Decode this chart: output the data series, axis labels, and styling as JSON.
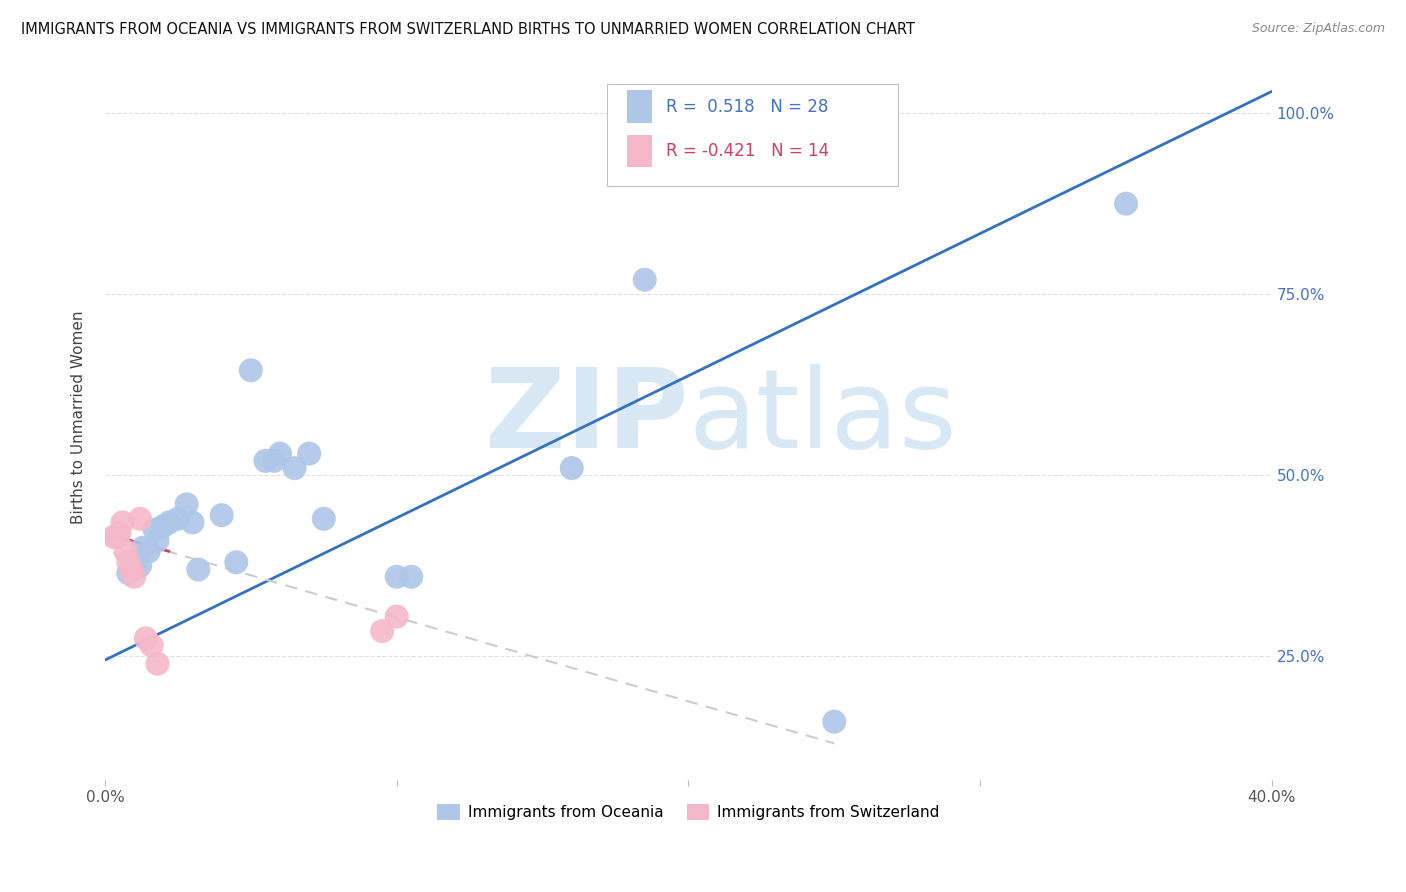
{
  "title": "IMMIGRANTS FROM OCEANIA VS IMMIGRANTS FROM SWITZERLAND BIRTHS TO UNMARRIED WOMEN CORRELATION CHART",
  "source": "Source: ZipAtlas.com",
  "ylabel": "Births to Unmarried Women",
  "legend_blue_label": "Immigrants from Oceania",
  "legend_pink_label": "Immigrants from Switzerland",
  "r_blue": 0.518,
  "n_blue": 28,
  "r_pink": -0.421,
  "n_pink": 14,
  "xlim": [
    0.0,
    0.4
  ],
  "ylim": [
    0.08,
    1.08
  ],
  "xticks": [
    0.0,
    0.1,
    0.2,
    0.3,
    0.4
  ],
  "xtick_labels": [
    "0.0%",
    "",
    "",
    "",
    "40.0%"
  ],
  "yticks": [
    0.25,
    0.5,
    0.75,
    1.0
  ],
  "ytick_labels": [
    "25.0%",
    "50.0%",
    "75.0%",
    "100.0%"
  ],
  "blue_color": "#aec6e8",
  "pink_color": "#f5b8c8",
  "blue_line_color": "#3572be",
  "pink_line_color": "#d04060",
  "pink_dash_color": "#cccccc",
  "blue_points_x": [
    0.008,
    0.01,
    0.012,
    0.013,
    0.015,
    0.017,
    0.018,
    0.02,
    0.022,
    0.025,
    0.028,
    0.03,
    0.032,
    0.04,
    0.045,
    0.05,
    0.055,
    0.058,
    0.06,
    0.065,
    0.07,
    0.075,
    0.1,
    0.105,
    0.16,
    0.185,
    0.25,
    0.35
  ],
  "blue_points_y": [
    0.365,
    0.375,
    0.375,
    0.4,
    0.395,
    0.425,
    0.41,
    0.43,
    0.435,
    0.44,
    0.46,
    0.435,
    0.37,
    0.445,
    0.38,
    0.645,
    0.52,
    0.52,
    0.53,
    0.51,
    0.53,
    0.44,
    0.36,
    0.36,
    0.51,
    0.77,
    0.16,
    0.875
  ],
  "pink_points_x": [
    0.003,
    0.004,
    0.005,
    0.006,
    0.007,
    0.008,
    0.009,
    0.01,
    0.012,
    0.014,
    0.016,
    0.018,
    0.095,
    0.1
  ],
  "pink_points_y": [
    0.415,
    0.415,
    0.42,
    0.435,
    0.395,
    0.38,
    0.37,
    0.36,
    0.44,
    0.275,
    0.265,
    0.24,
    0.285,
    0.305
  ],
  "blue_line_x0": 0.0,
  "blue_line_y0": 0.245,
  "blue_line_x1": 0.4,
  "blue_line_y1": 1.03,
  "pink_line_x0": 0.0,
  "pink_line_y0": 0.42,
  "pink_line_x1": 0.25,
  "pink_line_y1": 0.13,
  "watermark_zip": "ZIP",
  "watermark_atlas": "atlas",
  "watermark_color": "#d8e8f5",
  "background_color": "#ffffff",
  "grid_color": "#e0e0e0"
}
